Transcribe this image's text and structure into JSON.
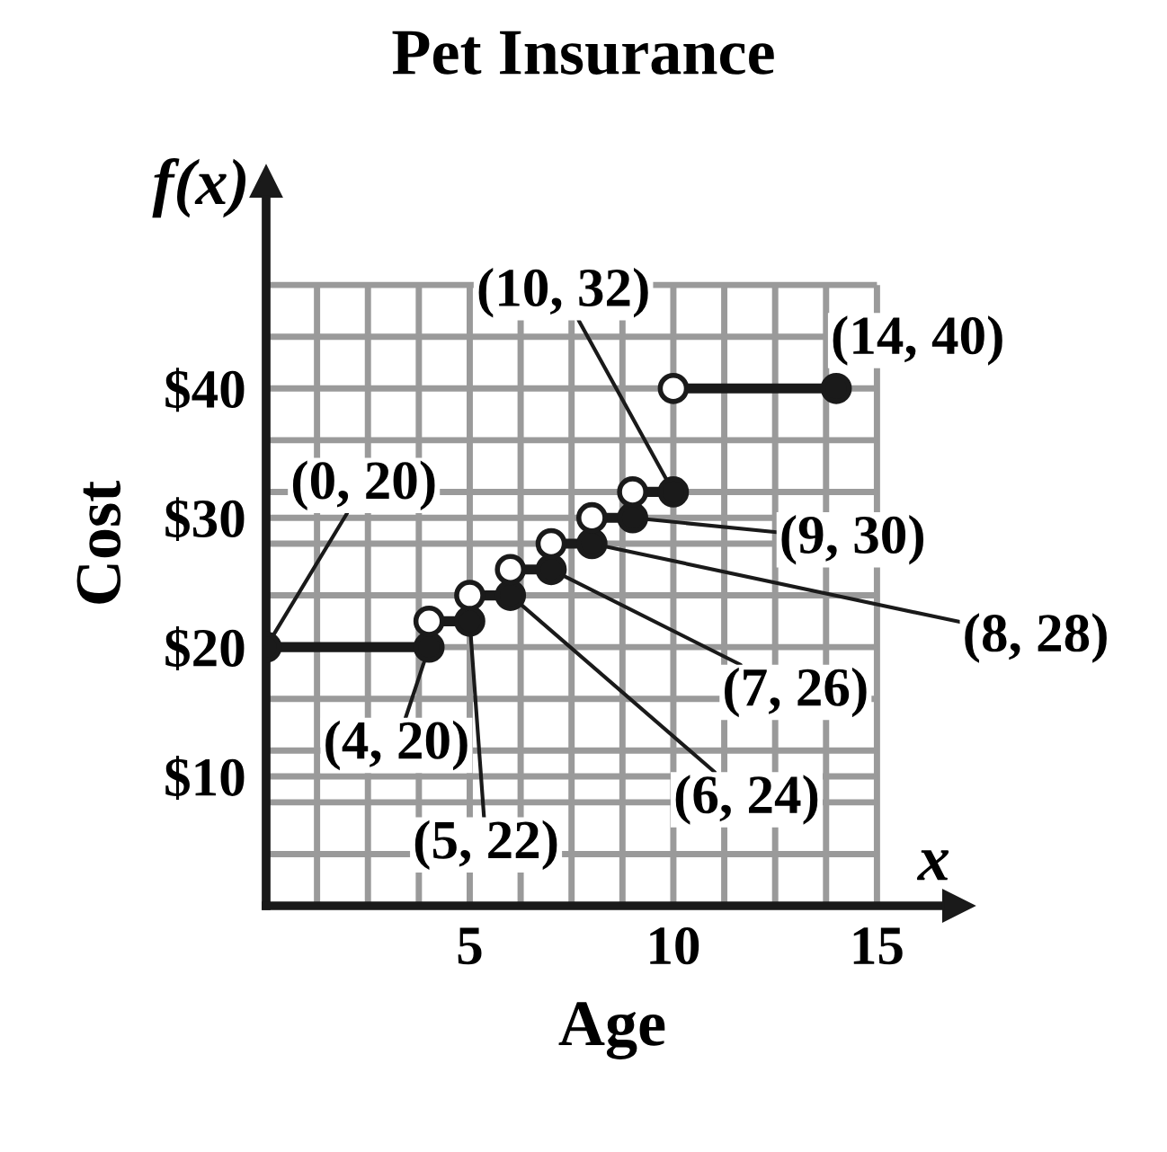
{
  "chart_data": {
    "type": "line",
    "title": "Pet Insurance",
    "xlabel": "Age",
    "ylabel": "Cost",
    "xlim": [
      0,
      17
    ],
    "ylim": [
      0,
      56
    ],
    "xticks": [
      {
        "value": 1.25,
        "label": null
      },
      {
        "value": 2.5,
        "label": null
      },
      {
        "value": 3.75,
        "label": null
      },
      5,
      {
        "value": 6.25,
        "label": null
      },
      {
        "value": 7.5,
        "label": null
      },
      {
        "value": 8.75,
        "label": null
      },
      10,
      {
        "value": 11.25,
        "label": null
      },
      {
        "value": 12.5,
        "label": null
      },
      {
        "value": 13.75,
        "label": null
      },
      15
    ],
    "yticks": [
      {
        "value": 4,
        "label": null
      },
      {
        "value": 8,
        "label": null
      },
      {
        "value": 10,
        "label": "$10"
      },
      {
        "value": 12,
        "label": null
      },
      {
        "value": 16,
        "label": null
      },
      {
        "value": 20,
        "label": "$20"
      },
      {
        "value": 24,
        "label": null
      },
      {
        "value": 28,
        "label": null
      },
      {
        "value": 30,
        "label": "$30"
      },
      {
        "value": 32,
        "label": null
      },
      {
        "value": 36,
        "label": null
      },
      {
        "value": 40,
        "label": "$40"
      },
      {
        "value": 44,
        "label": null
      },
      {
        "value": 48,
        "label": null
      }
    ],
    "grid": true,
    "series": [
      {
        "color": "#1a1a1a",
        "x": [
          0,
          4
        ],
        "values": [
          20,
          20
        ]
      },
      {
        "color": "#1a1a1a",
        "x": [
          4,
          5
        ],
        "values": [
          22,
          22
        ]
      },
      {
        "color": "#1a1a1a",
        "x": [
          5,
          6
        ],
        "values": [
          24,
          24
        ]
      },
      {
        "color": "#1a1a1a",
        "x": [
          6,
          7
        ],
        "values": [
          26,
          26
        ]
      },
      {
        "color": "#1a1a1a",
        "x": [
          7,
          8
        ],
        "values": [
          28,
          28
        ]
      },
      {
        "color": "#1a1a1a",
        "x": [
          8,
          9
        ],
        "values": [
          30,
          30
        ]
      },
      {
        "color": "#1a1a1a",
        "x": [
          9,
          10
        ],
        "values": [
          32,
          32
        ]
      },
      {
        "color": "#1a1a1a",
        "x": [
          10,
          14
        ],
        "values": [
          40,
          40
        ]
      },
      {
        "type": "scatter",
        "color": "#1a1a1a",
        "marker": "circle",
        "x": [
          0,
          4,
          5,
          6,
          7,
          8,
          9,
          10,
          14
        ],
        "values": [
          20,
          20,
          22,
          24,
          26,
          28,
          30,
          32,
          40
        ]
      },
      {
        "type": "scatter",
        "color": "#ffffff",
        "marker": "circle",
        "x": [
          4,
          5,
          6,
          7,
          8,
          9,
          10
        ],
        "values": [
          22,
          24,
          26,
          28,
          30,
          32,
          40
        ]
      }
    ],
    "annotations": [
      {
        "text": "(10, 32)",
        "x": 10,
        "y": 32
      },
      {
        "text": "(14, 40)",
        "x": 14,
        "y": 40
      },
      {
        "text": "(0, 20)",
        "x": 0,
        "y": 20
      },
      {
        "text": "(9, 30)",
        "x": 9,
        "y": 30
      },
      {
        "text": "(8, 28)",
        "x": 8,
        "y": 28
      },
      {
        "text": "(7, 26)",
        "x": 7,
        "y": 26
      },
      {
        "text": "(6, 24)",
        "x": 6,
        "y": 24
      },
      {
        "text": "(5, 22)",
        "x": 5,
        "y": 22
      },
      {
        "text": "(4, 20)",
        "x": 4,
        "y": 20
      },
      "f(x)",
      "x"
    ]
  }
}
